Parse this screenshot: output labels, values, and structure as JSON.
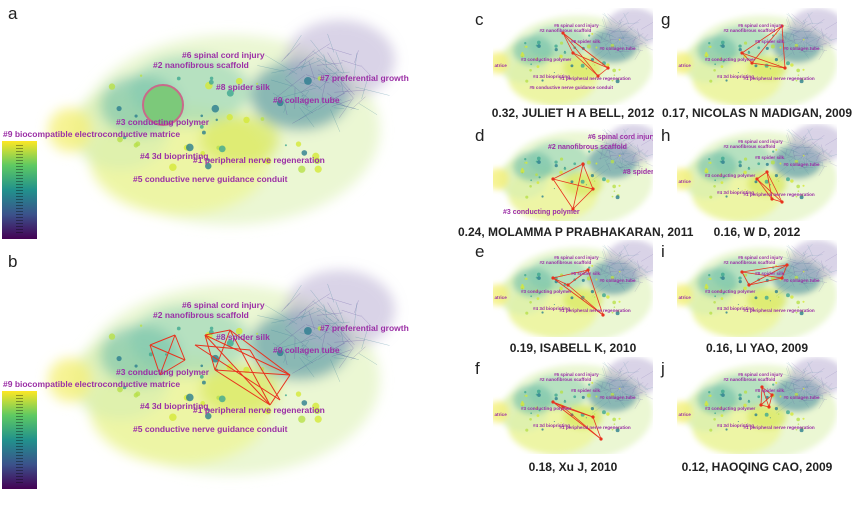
{
  "panels": {
    "a": {
      "letter": "a"
    },
    "b": {
      "letter": "b"
    }
  },
  "clusters": {
    "c0": "#0 collagen tube",
    "c1": "#1 peripheral nerve regeneration",
    "c2": "#2 nanofibrous scaffold",
    "c3": "#3 conducting polymer",
    "c4": "#4 3d bioprinting",
    "c5": "#5 conductive nerve guidance conduit",
    "c6": "#6 spinal cord injury",
    "c7": "#7 preferential growth",
    "c8": "#8 spider silk",
    "c9": "#9 biocompatible electroconductive matrice",
    "c9short": "atrice"
  },
  "colors": {
    "cluster_label": "#9b2fa6",
    "highlight": "#e8321e",
    "colormap": [
      "#440154",
      "#3b528b",
      "#21918c",
      "#5ec962",
      "#fde725"
    ]
  },
  "small_panels": [
    {
      "letter": "c",
      "caption": "0.32, JULIET H A BELL, 2012"
    },
    {
      "letter": "d",
      "caption": "0.24, MOLAMMA P PRABHAKARAN, 2011"
    },
    {
      "letter": "e",
      "caption": "0.19, ISABELL K, 2010"
    },
    {
      "letter": "f",
      "caption": "0.18, Xu J, 2010"
    },
    {
      "letter": "g",
      "caption": "0.17, NICOLAS N MADIGAN, 2009"
    },
    {
      "letter": "h",
      "caption": "0.16, W D, 2012"
    },
    {
      "letter": "i",
      "caption": "0.16, LI YAO, 2009"
    },
    {
      "letter": "j",
      "caption": "0.12, HAOQING CAO, 2009"
    }
  ]
}
